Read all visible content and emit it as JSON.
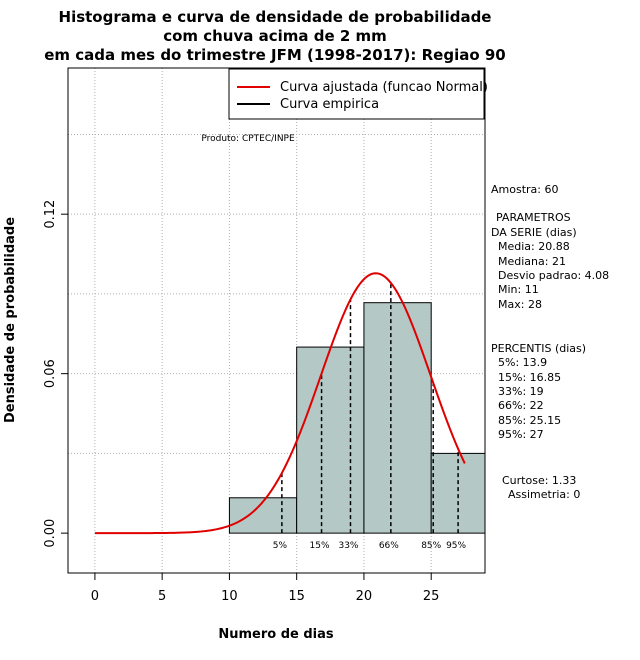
{
  "title": {
    "line1": "Histograma e curva de densidade de probabilidade",
    "line2": "com chuva acima de 2 mm",
    "line3": "em cada mes do trimestre JFM (1998-2017): Regiao 90"
  },
  "xlabel": "Numero de dias",
  "ylabel": "Densidade de probabilidade",
  "produto": "Produto: CPTEC/INPE",
  "legend": {
    "fitted": "Curva ajustada (funcao Normal)",
    "empirical": "Curva empirica"
  },
  "side_panel": {
    "amostra": "Amostra: 60",
    "parametros_1": "PARAMETROS",
    "parametros_2": "DA SERIE (dias)",
    "media": "Media: 20.88",
    "mediana": "Mediana: 21",
    "desvio": "Desvio padrao: 4.08",
    "min": "Min: 11",
    "max": "Max: 28",
    "percentis_title": "PERCENTIS (dias)",
    "p5": "5%: 13.9",
    "p15": "15%: 16.85",
    "p33": "33%: 19",
    "p66": "66%: 22",
    "p85": "85%: 25.15",
    "p95": "95%: 27",
    "curtose": "Curtose: 1.33",
    "assimetria": "Assimetria: 0"
  },
  "colors": {
    "bar_fill": "#b4c9c6",
    "fitted_curve": "#e00000",
    "grid": "#b0b0b0"
  },
  "chart_data": {
    "type": "bar",
    "xlim": [
      -2,
      29
    ],
    "ylim": [
      -0.015,
      0.175
    ],
    "x_ticks": [
      0,
      5,
      10,
      15,
      20,
      25
    ],
    "y_ticks": [
      0.0,
      0.06,
      0.12
    ],
    "y_tick_labels": [
      "0.00",
      "0.06",
      "0.12"
    ],
    "histogram": [
      {
        "x0": 10,
        "x1": 15,
        "density": 0.0133
      },
      {
        "x0": 15,
        "x1": 20,
        "density": 0.07
      },
      {
        "x0": 20,
        "x1": 25,
        "density": 0.0867
      },
      {
        "x0": 25,
        "x1": 29,
        "density": 0.03
      }
    ],
    "normal_fit": {
      "mean": 20.88,
      "sd": 4.08,
      "x_from": 0,
      "x_to": 27.5
    },
    "percentiles": [
      {
        "label": "5%",
        "x": 13.9
      },
      {
        "label": "15%",
        "x": 16.85
      },
      {
        "label": "33%",
        "x": 19
      },
      {
        "label": "66%",
        "x": 22
      },
      {
        "label": "85%",
        "x": 25.15
      },
      {
        "label": "95%",
        "x": 27
      }
    ],
    "grid": true,
    "legend_position": "top-right"
  }
}
